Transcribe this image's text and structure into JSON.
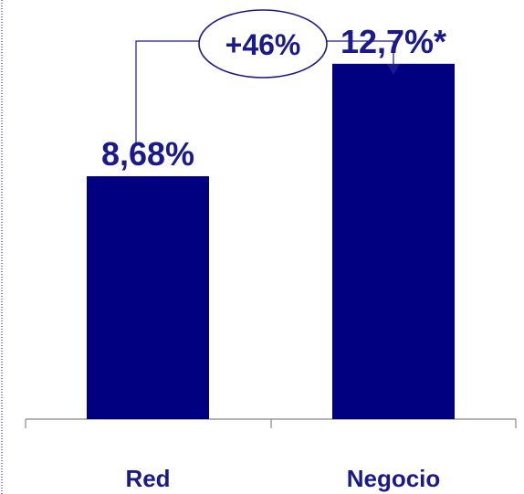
{
  "chart_data": {
    "type": "bar",
    "categories": [
      "Red",
      "Negocio"
    ],
    "values": [
      8.68,
      12.7
    ],
    "data_labels": [
      "8,68%",
      "12,7%*"
    ],
    "ylim": [
      0,
      14
    ],
    "grid": false,
    "legend": "none",
    "annotation": {
      "text": "+46%",
      "from": "Red",
      "to": "Negocio"
    }
  },
  "colors": {
    "bar": "#000080",
    "text": "#1a1a8c",
    "axis": "#888888",
    "border": "#8080c0"
  }
}
